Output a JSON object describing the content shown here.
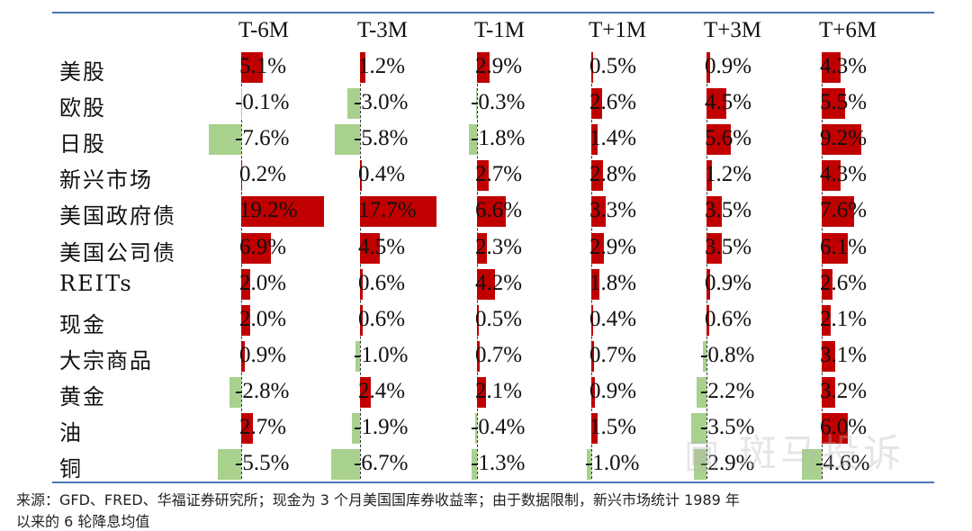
{
  "columns": [
    "T-6M",
    "T-3M",
    "T-1M",
    "T+1M",
    "T+3M",
    "T+6M"
  ],
  "rows": [
    {
      "label": "美股",
      "values": [
        5.1,
        1.2,
        2.9,
        0.5,
        0.9,
        4.3
      ]
    },
    {
      "label": "欧股",
      "values": [
        -0.1,
        -3.0,
        -0.3,
        2.6,
        4.5,
        5.5
      ]
    },
    {
      "label": "日股",
      "values": [
        -7.6,
        -5.8,
        -1.8,
        1.4,
        5.6,
        9.2
      ]
    },
    {
      "label": "新兴市场",
      "values": [
        0.2,
        0.4,
        2.7,
        2.8,
        1.2,
        4.3
      ]
    },
    {
      "label": "美国政府债",
      "values": [
        19.2,
        17.7,
        6.6,
        3.3,
        3.5,
        7.6
      ]
    },
    {
      "label": "美国公司债",
      "values": [
        6.9,
        4.5,
        2.3,
        2.9,
        3.5,
        6.1
      ]
    },
    {
      "label": "REITs",
      "values": [
        2.0,
        0.6,
        4.2,
        1.8,
        0.9,
        2.6
      ]
    },
    {
      "label": "现金",
      "values": [
        2.0,
        0.6,
        0.5,
        0.4,
        0.6,
        2.1
      ]
    },
    {
      "label": "大宗商品",
      "values": [
        0.9,
        -1.0,
        0.7,
        0.7,
        -0.8,
        3.1
      ]
    },
    {
      "label": "黄金",
      "values": [
        -2.8,
        2.4,
        2.1,
        0.9,
        -2.2,
        3.2
      ]
    },
    {
      "label": "油",
      "values": [
        2.7,
        -1.9,
        -0.4,
        1.5,
        -3.5,
        6.0
      ]
    },
    {
      "label": "铜",
      "values": [
        -5.5,
        -6.7,
        -1.3,
        -1.0,
        -2.9,
        -4.6
      ]
    }
  ],
  "colors": {
    "positive": "#c00000",
    "negative": "#a9d18e",
    "rule": "#4a76b5"
  },
  "source_note": {
    "line1": "来源：GFD、FRED、华福证券研究所；现金为 3 个月美国国库券收益率；由于数据限制，新兴市场统计 1989 年",
    "line2": "以来的 6 轮降息均值"
  },
  "watermark": "斑马投诉"
}
